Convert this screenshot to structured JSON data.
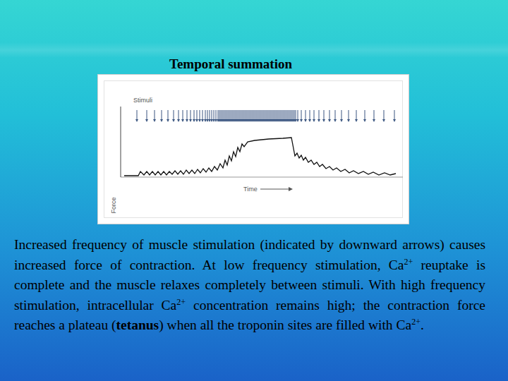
{
  "heading": "Temporal summation",
  "chart_data": {
    "type": "line",
    "stimuli_label": "Stimuli",
    "x_label": "Time",
    "y_label": "Force",
    "tick_labels": false,
    "color": "#111111",
    "xlim": [
      0,
      400
    ],
    "ylim": [
      0,
      100
    ],
    "x": [
      5,
      25,
      28,
      33,
      37,
      41,
      45,
      49,
      53,
      57,
      61,
      65,
      69,
      73,
      77,
      81,
      85,
      89,
      93,
      97,
      101,
      105,
      109,
      113,
      117,
      121,
      125,
      129,
      133,
      137,
      141,
      145,
      148,
      151,
      154,
      157,
      160,
      163,
      166,
      169,
      172,
      175,
      180,
      190,
      210,
      230,
      242,
      247,
      250,
      253,
      256,
      259,
      262,
      266,
      270,
      274,
      278,
      282,
      286,
      291,
      296,
      301,
      306,
      312,
      318,
      324,
      330,
      337,
      344,
      351,
      358,
      366,
      374,
      382,
      390
    ],
    "values": [
      2,
      2,
      8,
      3,
      8,
      3,
      8,
      3,
      8,
      3,
      8,
      3,
      8,
      4,
      9,
      4,
      9,
      4,
      10,
      5,
      10,
      5,
      11,
      6,
      12,
      7,
      13,
      8,
      15,
      10,
      19,
      13,
      24,
      17,
      30,
      23,
      36,
      29,
      42,
      36,
      47,
      43,
      50,
      52,
      54,
      55,
      56,
      30,
      34,
      27,
      31,
      24,
      28,
      21,
      24,
      18,
      21,
      15,
      18,
      12,
      15,
      10,
      13,
      8,
      11,
      6,
      9,
      5,
      8,
      4,
      7,
      3,
      6,
      3,
      5
    ],
    "stimuli": [
      23,
      37,
      48,
      58,
      67,
      75,
      82,
      88,
      94,
      99,
      104,
      108,
      112,
      116,
      120,
      123,
      126,
      129,
      132,
      135,
      138,
      140,
      142,
      144,
      146,
      148,
      150,
      152,
      154,
      156,
      158,
      160,
      162,
      164,
      166,
      168,
      170,
      172,
      174,
      176,
      178,
      180,
      182,
      184,
      186,
      188,
      190,
      192,
      194,
      196,
      198,
      200,
      202,
      204,
      206,
      208,
      210,
      212,
      214,
      216,
      218,
      220,
      222,
      224,
      226,
      228,
      230,
      232,
      234,
      236,
      238,
      240,
      242,
      244,
      246,
      248,
      251,
      256,
      262,
      268,
      274,
      281,
      288,
      296,
      304,
      313,
      323,
      334,
      346,
      359,
      373,
      388
    ]
  },
  "caption": [
    {
      "text": "Increased frequency of muscle stimulation (indicated by downward arrows) causes increased force of contraction. At low frequency stimulation, Ca"
    },
    {
      "text": "2+",
      "format": "superscript"
    },
    {
      "text": " reuptake is complete and the muscle relaxes completely between stimuli. With high frequency stimulation, intracellular Ca"
    },
    {
      "text": "2+",
      "format": "superscript"
    },
    {
      "text": " concentration remains high; the contraction force reaches a plateau ("
    },
    {
      "text": "tetanus",
      "format": "bold"
    },
    {
      "text": ") when all the troponin sites are filled with Ca"
    },
    {
      "text": "2+",
      "format": "superscript"
    },
    {
      "text": "."
    }
  ]
}
